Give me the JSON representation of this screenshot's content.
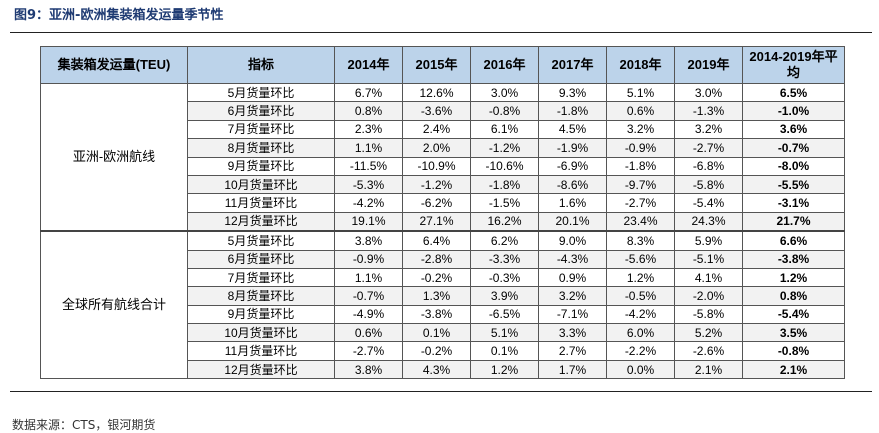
{
  "figure_title": "图9：亚洲-欧洲集装箱发运量季节性",
  "source": "数据来源：CTS，银河期货",
  "table": {
    "headers": [
      "集装箱发运量(TEU)",
      "指标",
      "2014年",
      "2015年",
      "2016年",
      "2017年",
      "2018年",
      "2019年",
      "2014-2019年平均"
    ],
    "groups": [
      {
        "name": "亚洲-欧洲航线",
        "rows": [
          {
            "metric": "5月货量环比",
            "values": [
              "6.7%",
              "12.6%",
              "3.0%",
              "9.3%",
              "5.1%",
              "3.0%"
            ],
            "avg": "6.5%"
          },
          {
            "metric": "6月货量环比",
            "values": [
              "0.8%",
              "-3.6%",
              "-0.8%",
              "-1.8%",
              "0.6%",
              "-1.3%"
            ],
            "avg": "-1.0%"
          },
          {
            "metric": "7月货量环比",
            "values": [
              "2.3%",
              "2.4%",
              "6.1%",
              "4.5%",
              "3.2%",
              "3.2%"
            ],
            "avg": "3.6%"
          },
          {
            "metric": "8月货量环比",
            "values": [
              "1.1%",
              "2.0%",
              "-1.2%",
              "-1.9%",
              "-0.9%",
              "-2.7%"
            ],
            "avg": "-0.7%"
          },
          {
            "metric": "9月货量环比",
            "values": [
              "-11.5%",
              "-10.9%",
              "-10.6%",
              "-6.9%",
              "-1.8%",
              "-6.8%"
            ],
            "avg": "-8.0%"
          },
          {
            "metric": "10月货量环比",
            "values": [
              "-5.3%",
              "-1.2%",
              "-1.8%",
              "-8.6%",
              "-9.7%",
              "-5.8%"
            ],
            "avg": "-5.5%"
          },
          {
            "metric": "11月货量环比",
            "values": [
              "-4.2%",
              "-6.2%",
              "-1.5%",
              "1.6%",
              "-2.7%",
              "-5.4%"
            ],
            "avg": "-3.1%"
          },
          {
            "metric": "12月货量环比",
            "values": [
              "19.1%",
              "27.1%",
              "16.2%",
              "20.1%",
              "23.4%",
              "24.3%"
            ],
            "avg": "21.7%"
          }
        ]
      },
      {
        "name": "全球所有航线合计",
        "rows": [
          {
            "metric": "5月货量环比",
            "values": [
              "3.8%",
              "6.4%",
              "6.2%",
              "9.0%",
              "8.3%",
              "5.9%"
            ],
            "avg": "6.6%"
          },
          {
            "metric": "6月货量环比",
            "values": [
              "-0.9%",
              "-2.8%",
              "-3.3%",
              "-4.3%",
              "-5.6%",
              "-5.1%"
            ],
            "avg": "-3.8%"
          },
          {
            "metric": "7月货量环比",
            "values": [
              "1.1%",
              "-0.2%",
              "-0.3%",
              "0.9%",
              "1.2%",
              "4.1%"
            ],
            "avg": "1.2%"
          },
          {
            "metric": "8月货量环比",
            "values": [
              "-0.7%",
              "1.3%",
              "3.9%",
              "3.2%",
              "-0.5%",
              "-2.0%"
            ],
            "avg": "0.8%"
          },
          {
            "metric": "9月货量环比",
            "values": [
              "-4.9%",
              "-3.8%",
              "-6.5%",
              "-7.1%",
              "-4.2%",
              "-5.8%"
            ],
            "avg": "-5.4%"
          },
          {
            "metric": "10月货量环比",
            "values": [
              "0.6%",
              "0.1%",
              "5.1%",
              "3.3%",
              "6.0%",
              "5.2%"
            ],
            "avg": "3.5%"
          },
          {
            "metric": "11月货量环比",
            "values": [
              "-2.7%",
              "-0.2%",
              "0.1%",
              "2.7%",
              "-2.2%",
              "-2.6%"
            ],
            "avg": "-0.8%"
          },
          {
            "metric": "12月货量环比",
            "values": [
              "3.8%",
              "4.3%",
              "1.2%",
              "1.7%",
              "0.0%",
              "2.1%"
            ],
            "avg": "2.1%"
          }
        ]
      }
    ]
  },
  "colors": {
    "header_bg": "#bcd3ea",
    "title": "#1f3b73",
    "shade": "#f2f2f2"
  }
}
